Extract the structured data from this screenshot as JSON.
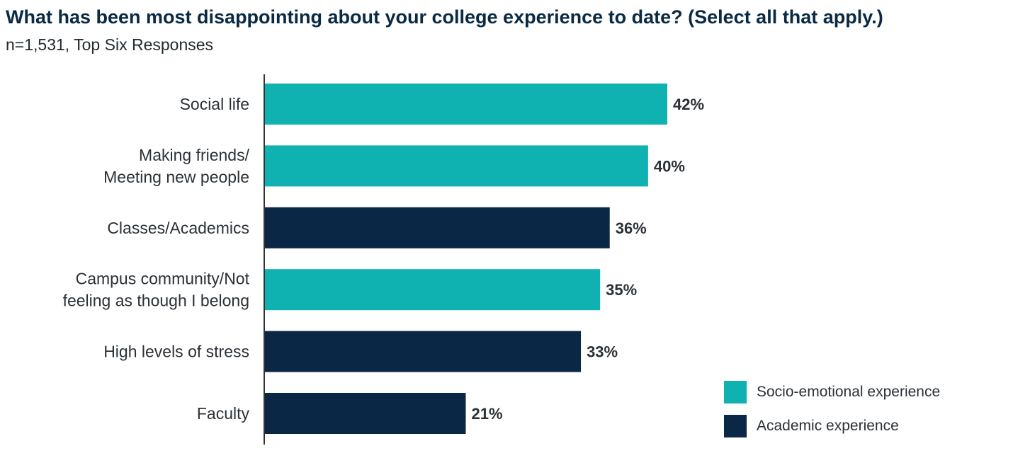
{
  "title": "What has been most disappointing about your college experience to date? (Select all that apply.)",
  "subtitle": "n=1,531, Top Six Responses",
  "colors": {
    "socio": "#0fb1b1",
    "academic": "#0a2846",
    "axis": "#333333"
  },
  "legend": [
    {
      "label": "Socio-emotional experience",
      "color": "#0fb1b1"
    },
    {
      "label": "Academic experience",
      "color": "#0a2846"
    }
  ],
  "chart_data": {
    "type": "bar",
    "orientation": "horizontal",
    "categories": [
      [
        "Social life"
      ],
      [
        "Making friends/",
        "Meeting new people"
      ],
      [
        "Classes/Academics"
      ],
      [
        "Campus community/Not",
        "feeling as though I belong"
      ],
      [
        "High levels of stress"
      ],
      [
        "Faculty"
      ]
    ],
    "values": [
      42,
      40,
      36,
      35,
      33,
      21
    ],
    "value_labels": [
      "42%",
      "40%",
      "36%",
      "35%",
      "33%",
      "21%"
    ],
    "groups": [
      "Socio-emotional experience",
      "Socio-emotional experience",
      "Academic experience",
      "Socio-emotional experience",
      "Academic experience",
      "Academic experience"
    ],
    "unit": "%",
    "xlim": [
      0,
      42
    ],
    "grid": false,
    "legend_position": "bottom-right"
  }
}
